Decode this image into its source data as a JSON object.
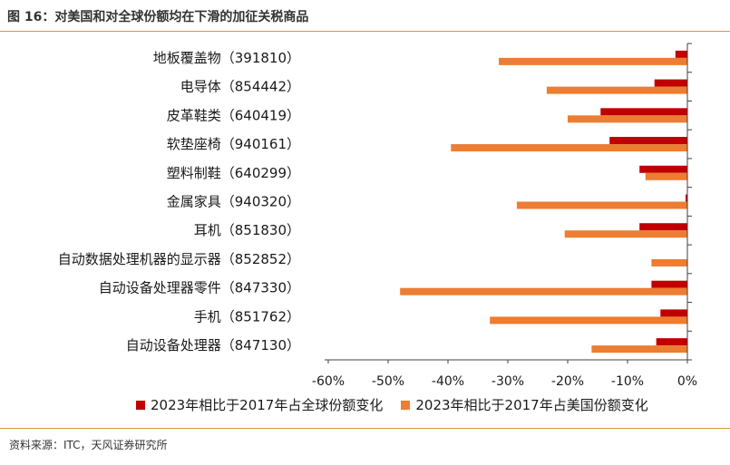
{
  "figure_title": "图 16：对美国和对全球份额均在下滑的加征关税商品",
  "source": "资料来源：ITC，天风证券研究所",
  "chart_data": {
    "type": "bar",
    "orientation": "horizontal",
    "categories": [
      "地板覆盖物（391810）",
      "电导体（854442）",
      "皮革鞋类（640419）",
      "软垫座椅（940161）",
      "塑料制鞋（640299）",
      "金属家具（940320）",
      "耳机（851830）",
      "自动数据处理机器的显示器（852852）",
      "自动设备处理器零件（847330）",
      "手机（851762）",
      "自动设备处理器（847130）"
    ],
    "series": [
      {
        "name": "2023年相比于2017年占全球份额变化",
        "color": "#c00000",
        "values": [
          -2.0,
          -5.5,
          -14.5,
          -13.0,
          -8.0,
          -0.3,
          -8.0,
          0,
          -6.0,
          -4.5,
          -5.2
        ]
      },
      {
        "name": "2023年相比于2017年占美国份额变化",
        "color": "#ed7d31",
        "values": [
          -31.5,
          -23.5,
          -20.0,
          -39.5,
          -7.0,
          -28.5,
          -20.5,
          -6.0,
          -48.0,
          -33.0,
          -16.0
        ]
      }
    ],
    "xlim": [
      -60,
      0
    ],
    "xticks": [
      -60,
      -50,
      -40,
      -30,
      -20,
      -10,
      0
    ],
    "tick_format": "percent",
    "legend_position": "bottom",
    "grid": false
  }
}
